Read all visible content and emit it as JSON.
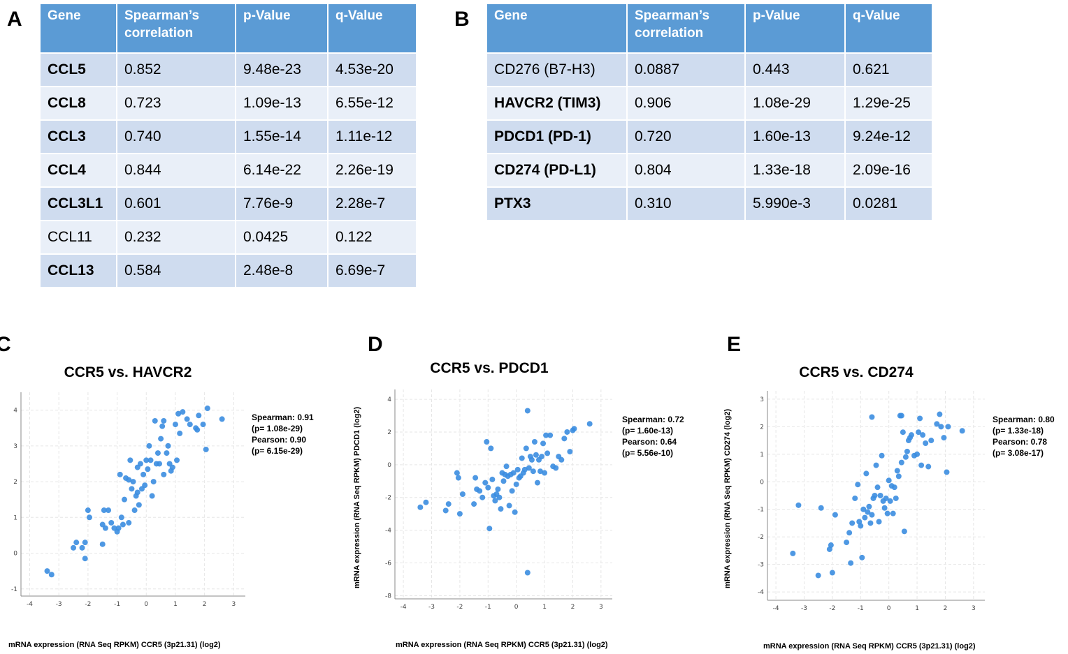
{
  "panels": {
    "A": "A",
    "B": "B",
    "C": "C",
    "D": "D",
    "E": "E"
  },
  "table_a": {
    "headers": [
      "Gene",
      "Spearman’s correlation",
      "p-Value",
      "q-Value"
    ],
    "rows": [
      {
        "gene": "CCL5",
        "bold": true,
        "spearman": "0.852",
        "p": "9.48e-23",
        "q": "4.53e-20"
      },
      {
        "gene": "CCL8",
        "bold": true,
        "spearman": "0.723",
        "p": "1.09e-13",
        "q": "6.55e-12"
      },
      {
        "gene": "CCL3",
        "bold": true,
        "spearman": "0.740",
        "p": "1.55e-14",
        "q": "1.11e-12"
      },
      {
        "gene": "CCL4",
        "bold": true,
        "spearman": "0.844",
        "p": "6.14e-22",
        "q": "2.26e-19"
      },
      {
        "gene": "CCL3L1",
        "bold": true,
        "spearman": "0.601",
        "p": "7.76e-9",
        "q": "2.28e-7"
      },
      {
        "gene": "CCL11",
        "bold": false,
        "spearman": "0.232",
        "p": "0.0425",
        "q": "0.122"
      },
      {
        "gene": "CCL13",
        "bold": true,
        "spearman": "0.584",
        "p": "2.48e-8",
        "q": "6.69e-7"
      }
    ]
  },
  "table_b": {
    "headers": [
      "Gene",
      "Spearman’s correlation",
      "p-Value",
      "q-Value"
    ],
    "rows": [
      {
        "gene": "CD276 (B7-H3)",
        "bold": false,
        "spearman": "0.0887",
        "p": "0.443",
        "q": "0.621"
      },
      {
        "gene": "HAVCR2 (TIM3)",
        "bold": true,
        "spearman": "0.906",
        "p": "1.08e-29",
        "q": "1.29e-25"
      },
      {
        "gene": "PDCD1 (PD-1)",
        "bold": true,
        "spearman": "0.720",
        "p": "1.60e-13",
        "q": "9.24e-12"
      },
      {
        "gene": "CD274 (PD-L1)",
        "bold": true,
        "spearman": "0.804",
        "p": "1.33e-18",
        "q": "2.09e-16"
      },
      {
        "gene": "PTX3",
        "bold": true,
        "spearman": "0.310",
        "p": "5.990e-3",
        "q": "0.0281"
      }
    ]
  },
  "chart_data": [
    {
      "type": "scatter",
      "title": "CCR5 vs. HAVCR2",
      "xlabel": "mRNA expression (RNA Seq RPKM) CCR5 (3p21.31) (log2)",
      "ylabel": "",
      "xlim": [
        -4.3,
        3.4
      ],
      "ylim": [
        -1.2,
        4.5
      ],
      "xticks": [
        -4,
        -3,
        -2,
        -1,
        0,
        1,
        2,
        3
      ],
      "yticks": [
        -1,
        0,
        1,
        2,
        3,
        4
      ],
      "grid": true,
      "point_color": "#3b8de0",
      "stats": [
        "Spearman: 0.91",
        "(p= 1.08e-29)",
        "Pearson: 0.90",
        "(p= 6.15e-29)"
      ],
      "points": [
        [
          -3.4,
          -0.5
        ],
        [
          -3.25,
          -0.6
        ],
        [
          -2.5,
          0.15
        ],
        [
          -2.4,
          0.3
        ],
        [
          -2.2,
          0.15
        ],
        [
          -2.1,
          0.3
        ],
        [
          -2.1,
          -0.15
        ],
        [
          -2.0,
          1.2
        ],
        [
          -1.95,
          1.0
        ],
        [
          -1.5,
          0.8
        ],
        [
          -1.5,
          0.25
        ],
        [
          -1.45,
          1.2
        ],
        [
          -1.4,
          0.7
        ],
        [
          -1.3,
          1.2
        ],
        [
          -1.2,
          0.85
        ],
        [
          -1.1,
          0.7
        ],
        [
          -1.0,
          0.6
        ],
        [
          -0.95,
          0.7
        ],
        [
          -0.9,
          2.2
        ],
        [
          -0.85,
          1.0
        ],
        [
          -0.8,
          0.8
        ],
        [
          -0.75,
          1.5
        ],
        [
          -0.7,
          2.1
        ],
        [
          -0.6,
          0.85
        ],
        [
          -0.6,
          2.05
        ],
        [
          -0.55,
          2.6
        ],
        [
          -0.5,
          1.8
        ],
        [
          -0.45,
          2.0
        ],
        [
          -0.4,
          1.2
        ],
        [
          -0.35,
          1.6
        ],
        [
          -0.3,
          1.7
        ],
        [
          -0.3,
          2.4
        ],
        [
          -0.25,
          1.35
        ],
        [
          -0.2,
          2.5
        ],
        [
          -0.15,
          1.8
        ],
        [
          -0.1,
          2.2
        ],
        [
          -0.05,
          1.9
        ],
        [
          0.0,
          2.6
        ],
        [
          0.05,
          2.35
        ],
        [
          0.1,
          3.0
        ],
        [
          0.15,
          2.6
        ],
        [
          0.2,
          1.6
        ],
        [
          0.25,
          2.0
        ],
        [
          0.3,
          3.7
        ],
        [
          0.35,
          2.5
        ],
        [
          0.4,
          2.8
        ],
        [
          0.45,
          2.5
        ],
        [
          0.5,
          3.2
        ],
        [
          0.55,
          3.55
        ],
        [
          0.6,
          3.7
        ],
        [
          0.6,
          2.2
        ],
        [
          0.7,
          2.8
        ],
        [
          0.75,
          3.0
        ],
        [
          0.8,
          2.5
        ],
        [
          0.85,
          2.3
        ],
        [
          0.9,
          2.4
        ],
        [
          1.0,
          3.6
        ],
        [
          1.05,
          2.6
        ],
        [
          1.1,
          3.9
        ],
        [
          1.15,
          3.35
        ],
        [
          1.25,
          3.95
        ],
        [
          1.4,
          3.75
        ],
        [
          1.5,
          3.6
        ],
        [
          1.7,
          3.5
        ],
        [
          1.75,
          3.45
        ],
        [
          1.8,
          3.85
        ],
        [
          1.95,
          3.6
        ],
        [
          2.05,
          2.9
        ],
        [
          2.1,
          4.05
        ],
        [
          2.6,
          3.75
        ]
      ]
    },
    {
      "type": "scatter",
      "title": "CCR5 vs. PDCD1",
      "xlabel": "mRNA expression (RNA Seq RPKM) CCR5 (3p21.31) (log2)",
      "ylabel": "mRNA expression (RNA Seq RPKM) PDCD1 (log2)",
      "xlim": [
        -4.3,
        3.4
      ],
      "ylim": [
        -8.2,
        4.6
      ],
      "xticks": [
        -4,
        -3,
        -2,
        -1,
        0,
        1,
        2,
        3
      ],
      "yticks": [
        -8,
        -6,
        -4,
        -2,
        0,
        2,
        4
      ],
      "grid": true,
      "point_color": "#3b8de0",
      "stats": [
        "Spearman: 0.72",
        "(p= 1.60e-13)",
        "Pearson: 0.64",
        "(p= 5.56e-10)"
      ],
      "points": [
        [
          -3.4,
          -2.6
        ],
        [
          -3.2,
          -2.3
        ],
        [
          -2.5,
          -2.8
        ],
        [
          -2.4,
          -2.4
        ],
        [
          -2.1,
          -0.5
        ],
        [
          -2.05,
          -0.8
        ],
        [
          -2.0,
          -3.0
        ],
        [
          -1.9,
          -1.8
        ],
        [
          -1.5,
          -2.4
        ],
        [
          -1.45,
          -0.8
        ],
        [
          -1.4,
          -1.5
        ],
        [
          -1.3,
          -1.6
        ],
        [
          -1.2,
          -2.0
        ],
        [
          -1.1,
          -1.1
        ],
        [
          -1.05,
          1.4
        ],
        [
          -1.0,
          -1.4
        ],
        [
          -0.95,
          -3.9
        ],
        [
          -0.9,
          1.0
        ],
        [
          -0.85,
          -0.9
        ],
        [
          -0.8,
          -1.9
        ],
        [
          -0.75,
          -2.2
        ],
        [
          -0.7,
          -1.8
        ],
        [
          -0.65,
          -1.5
        ],
        [
          -0.6,
          -2.0
        ],
        [
          -0.55,
          -2.7
        ],
        [
          -0.5,
          -0.5
        ],
        [
          -0.45,
          -1.0
        ],
        [
          -0.4,
          -0.6
        ],
        [
          -0.35,
          -0.1
        ],
        [
          -0.3,
          -0.7
        ],
        [
          -0.25,
          -2.5
        ],
        [
          -0.2,
          -0.6
        ],
        [
          -0.15,
          -1.6
        ],
        [
          -0.1,
          -0.5
        ],
        [
          -0.05,
          -2.9
        ],
        [
          0.0,
          -1.2
        ],
        [
          0.05,
          -0.3
        ],
        [
          0.1,
          -0.8
        ],
        [
          0.15,
          -0.7
        ],
        [
          0.2,
          0.4
        ],
        [
          0.25,
          -0.5
        ],
        [
          0.3,
          -0.3
        ],
        [
          0.35,
          1.0
        ],
        [
          0.4,
          3.3
        ],
        [
          0.4,
          -6.6
        ],
        [
          0.45,
          -0.2
        ],
        [
          0.5,
          0.5
        ],
        [
          0.55,
          0.3
        ],
        [
          0.6,
          -0.4
        ],
        [
          0.65,
          1.4
        ],
        [
          0.7,
          0.6
        ],
        [
          0.75,
          -1.1
        ],
        [
          0.8,
          0.3
        ],
        [
          0.85,
          -0.4
        ],
        [
          0.9,
          0.5
        ],
        [
          0.95,
          1.3
        ],
        [
          1.0,
          -0.5
        ],
        [
          1.05,
          1.8
        ],
        [
          1.1,
          0.7
        ],
        [
          1.2,
          1.8
        ],
        [
          1.3,
          -0.1
        ],
        [
          1.4,
          -0.2
        ],
        [
          1.5,
          0.5
        ],
        [
          1.6,
          0.3
        ],
        [
          1.7,
          1.6
        ],
        [
          1.8,
          2.0
        ],
        [
          1.9,
          0.8
        ],
        [
          2.0,
          2.1
        ],
        [
          2.05,
          2.2
        ],
        [
          2.6,
          2.5
        ]
      ]
    },
    {
      "type": "scatter",
      "title": "CCR5 vs. CD274",
      "xlabel": "mRNA expression (RNA Seq RPKM) CCR5 (3p21.31) (log2)",
      "ylabel": "mRNA expression (RNA Seq RPKM) CD274 (log2)",
      "xlim": [
        -4.3,
        3.4
      ],
      "ylim": [
        -4.3,
        3.3
      ],
      "xticks": [
        -4,
        -3,
        -2,
        -1,
        0,
        1,
        2,
        3
      ],
      "yticks": [
        -4,
        -3,
        -2,
        -1,
        0,
        1,
        2,
        3
      ],
      "grid": true,
      "point_color": "#3b8de0",
      "stats": [
        "Spearman: 0.80",
        "(p= 1.33e-18)",
        "Pearson: 0.78",
        "(p= 3.08e-17)"
      ],
      "points": [
        [
          -3.4,
          -2.6
        ],
        [
          -3.2,
          -0.85
        ],
        [
          -2.5,
          -3.4
        ],
        [
          -2.4,
          -0.95
        ],
        [
          -2.1,
          -2.45
        ],
        [
          -2.05,
          -2.3
        ],
        [
          -2.0,
          -3.3
        ],
        [
          -1.9,
          -1.2
        ],
        [
          -1.5,
          -2.2
        ],
        [
          -1.4,
          -1.85
        ],
        [
          -1.35,
          -2.95
        ],
        [
          -1.3,
          -1.5
        ],
        [
          -1.2,
          -0.6
        ],
        [
          -1.1,
          -0.1
        ],
        [
          -1.05,
          -1.45
        ],
        [
          -1.0,
          -1.6
        ],
        [
          -0.95,
          -2.75
        ],
        [
          -0.9,
          -1.0
        ],
        [
          -0.85,
          -1.3
        ],
        [
          -0.8,
          0.3
        ],
        [
          -0.75,
          -1.1
        ],
        [
          -0.7,
          -0.9
        ],
        [
          -0.65,
          -1.5
        ],
        [
          -0.6,
          -1.2
        ],
        [
          -0.55,
          -0.6
        ],
        [
          -0.5,
          -0.5
        ],
        [
          -0.45,
          0.6
        ],
        [
          -0.4,
          -0.2
        ],
        [
          -0.35,
          -1.45
        ],
        [
          -0.3,
          -0.5
        ],
        [
          -0.25,
          0.95
        ],
        [
          -0.2,
          -0.7
        ],
        [
          -0.15,
          -0.95
        ],
        [
          -0.1,
          -0.6
        ],
        [
          -0.05,
          -1.15
        ],
        [
          0.0,
          0.05
        ],
        [
          0.05,
          -0.7
        ],
        [
          0.1,
          -0.15
        ],
        [
          0.15,
          -1.15
        ],
        [
          0.2,
          -0.2
        ],
        [
          0.25,
          -0.6
        ],
        [
          0.3,
          0.4
        ],
        [
          0.35,
          0.2
        ],
        [
          0.4,
          2.4
        ],
        [
          0.45,
          0.7
        ],
        [
          0.5,
          1.8
        ],
        [
          0.55,
          -1.8
        ],
        [
          0.6,
          0.9
        ],
        [
          0.65,
          1.1
        ],
        [
          0.7,
          1.5
        ],
        [
          0.75,
          1.6
        ],
        [
          0.8,
          1.7
        ],
        [
          0.9,
          0.95
        ],
        [
          1.0,
          1.0
        ],
        [
          1.05,
          1.8
        ],
        [
          1.1,
          2.3
        ],
        [
          1.15,
          0.6
        ],
        [
          1.2,
          1.7
        ],
        [
          1.3,
          1.4
        ],
        [
          1.4,
          0.55
        ],
        [
          1.5,
          1.5
        ],
        [
          1.7,
          2.1
        ],
        [
          1.8,
          2.45
        ],
        [
          1.85,
          2.0
        ],
        [
          1.95,
          1.6
        ],
        [
          2.05,
          0.35
        ],
        [
          2.1,
          2.0
        ],
        [
          2.6,
          1.85
        ],
        [
          0.45,
          2.4
        ],
        [
          -0.6,
          2.35
        ]
      ]
    }
  ]
}
